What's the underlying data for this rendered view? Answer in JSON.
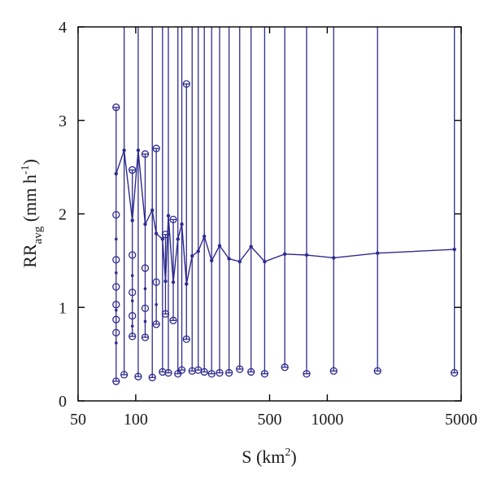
{
  "chart_data": {
    "type": "line",
    "x_scale": "log",
    "xlim": [
      50,
      5000
    ],
    "ylim": [
      0,
      4
    ],
    "xticks": [
      50,
      100,
      500,
      1000,
      5000
    ],
    "xtick_labels": [
      "50",
      "100",
      "500",
      "1000",
      "5000"
    ],
    "yticks": [
      0,
      1,
      2,
      3,
      4
    ],
    "ytick_labels": [
      "0",
      "1",
      "2",
      "3",
      "4"
    ],
    "xlabel": {
      "base": "S (km",
      "sup": "2",
      "tail": ")"
    },
    "ylabel": {
      "base": "RR",
      "sub": "avg",
      "unit": " (mm h",
      "sup": "-1",
      "tail": ")"
    },
    "grid": false,
    "color": "#2e2b8f",
    "series": [
      {
        "x": 79,
        "y_mean": 2.43,
        "y_min": 0.21,
        "y_max": 3.14,
        "y_min_cap": true,
        "y_max_cap": true,
        "markers": [
          0.21,
          0.73,
          0.87,
          1.03,
          1.22,
          1.51,
          1.99,
          3.14
        ],
        "dots": [
          0.62,
          0.97,
          1.37,
          1.73,
          2.43
        ]
      },
      {
        "x": 87,
        "y_mean": 2.68,
        "y_min": 0.28,
        "y_max": 4.0,
        "y_min_cap": true,
        "y_max_cap": false,
        "markers": [
          0.28
        ],
        "dots": []
      },
      {
        "x": 96,
        "y_mean": 1.93,
        "y_min": 0.69,
        "y_max": 2.47,
        "y_min_cap": true,
        "y_max_cap": true,
        "markers": [
          0.69,
          0.91,
          1.16,
          1.56,
          2.47
        ],
        "dots": [
          0.8,
          1.07,
          1.34,
          1.93
        ]
      },
      {
        "x": 103,
        "y_mean": 2.68,
        "y_min": 0.26,
        "y_max": 4.0,
        "y_min_cap": true,
        "y_max_cap": false,
        "markers": [
          0.26
        ],
        "dots": []
      },
      {
        "x": 112,
        "y_mean": 1.89,
        "y_min": 0.68,
        "y_max": 2.64,
        "y_min_cap": true,
        "y_max_cap": true,
        "markers": [
          0.68,
          0.99,
          1.42,
          2.64
        ],
        "dots": [
          0.85,
          1.2,
          1.89
        ]
      },
      {
        "x": 122,
        "y_mean": 2.04,
        "y_min": 0.25,
        "y_max": 4.0,
        "y_min_cap": true,
        "y_max_cap": false,
        "markers": [
          0.25
        ],
        "dots": []
      },
      {
        "x": 128,
        "y_mean": 1.79,
        "y_min": 0.82,
        "y_max": 2.7,
        "y_min_cap": true,
        "y_max_cap": true,
        "markers": [
          0.82,
          1.27,
          2.7
        ],
        "dots": [
          1.03,
          1.79
        ]
      },
      {
        "x": 138,
        "y_mean": 1.73,
        "y_min": 0.31,
        "y_max": 4.0,
        "y_min_cap": true,
        "y_max_cap": false,
        "markers": [
          0.31
        ],
        "dots": []
      },
      {
        "x": 143,
        "y_mean": 1.28,
        "y_min": 0.93,
        "y_max": 1.78,
        "y_min_cap": true,
        "y_max_cap": true,
        "markers": [
          0.93,
          1.78
        ],
        "dots": [
          1.28
        ]
      },
      {
        "x": 148,
        "y_mean": 1.98,
        "y_min": 0.3,
        "y_max": 4.0,
        "y_min_cap": true,
        "y_max_cap": false,
        "markers": [
          0.3
        ],
        "dots": []
      },
      {
        "x": 157,
        "y_mean": 1.27,
        "y_min": 0.86,
        "y_max": 1.94,
        "y_min_cap": true,
        "y_max_cap": true,
        "markers": [
          0.86,
          1.94
        ],
        "dots": [
          1.27
        ]
      },
      {
        "x": 166,
        "y_mean": 1.73,
        "y_min": 0.29,
        "y_max": 4.0,
        "y_min_cap": true,
        "y_max_cap": false,
        "markers": [
          0.29
        ],
        "dots": []
      },
      {
        "x": 174,
        "y_mean": 1.89,
        "y_min": 0.33,
        "y_max": 4.0,
        "y_min_cap": true,
        "y_max_cap": false,
        "markers": [
          0.33
        ],
        "dots": []
      },
      {
        "x": 184,
        "y_mean": 1.25,
        "y_min": 0.66,
        "y_max": 3.39,
        "y_min_cap": true,
        "y_max_cap": true,
        "markers": [
          0.66,
          3.39
        ],
        "dots": [
          1.25
        ]
      },
      {
        "x": 197,
        "y_mean": 1.55,
        "y_min": 0.32,
        "y_max": 4.0,
        "y_min_cap": true,
        "y_max_cap": false,
        "markers": [
          0.32
        ],
        "dots": []
      },
      {
        "x": 212,
        "y_mean": 1.6,
        "y_min": 0.33,
        "y_max": 4.0,
        "y_min_cap": true,
        "y_max_cap": false,
        "markers": [
          0.33
        ],
        "dots": []
      },
      {
        "x": 228,
        "y_mean": 1.76,
        "y_min": 0.31,
        "y_max": 4.0,
        "y_min_cap": true,
        "y_max_cap": false,
        "markers": [
          0.31
        ],
        "dots": []
      },
      {
        "x": 249,
        "y_mean": 1.5,
        "y_min": 0.29,
        "y_max": 4.0,
        "y_min_cap": true,
        "y_max_cap": false,
        "markers": [
          0.29
        ],
        "dots": []
      },
      {
        "x": 274,
        "y_mean": 1.66,
        "y_min": 0.3,
        "y_max": 4.0,
        "y_min_cap": true,
        "y_max_cap": false,
        "markers": [
          0.3
        ],
        "dots": []
      },
      {
        "x": 307,
        "y_mean": 1.52,
        "y_min": 0.3,
        "y_max": 4.0,
        "y_min_cap": true,
        "y_max_cap": false,
        "markers": [
          0.3
        ],
        "dots": []
      },
      {
        "x": 349,
        "y_mean": 1.49,
        "y_min": 0.34,
        "y_max": 4.0,
        "y_min_cap": true,
        "y_max_cap": false,
        "markers": [
          0.34
        ],
        "dots": []
      },
      {
        "x": 400,
        "y_mean": 1.65,
        "y_min": 0.31,
        "y_max": 4.0,
        "y_min_cap": true,
        "y_max_cap": false,
        "markers": [
          0.31
        ],
        "dots": []
      },
      {
        "x": 471,
        "y_mean": 1.49,
        "y_min": 0.29,
        "y_max": 4.0,
        "y_min_cap": true,
        "y_max_cap": false,
        "markers": [
          0.29
        ],
        "dots": []
      },
      {
        "x": 600,
        "y_mean": 1.57,
        "y_min": 0.36,
        "y_max": 4.0,
        "y_min_cap": true,
        "y_max_cap": false,
        "markers": [
          0.36
        ],
        "dots": []
      },
      {
        "x": 780,
        "y_mean": 1.56,
        "y_min": 0.29,
        "y_max": 4.0,
        "y_min_cap": true,
        "y_max_cap": false,
        "markers": [
          0.29
        ],
        "dots": []
      },
      {
        "x": 1080,
        "y_mean": 1.53,
        "y_min": 0.32,
        "y_max": 4.0,
        "y_min_cap": true,
        "y_max_cap": false,
        "markers": [
          0.32
        ],
        "dots": []
      },
      {
        "x": 1830,
        "y_mean": 1.58,
        "y_min": 0.32,
        "y_max": 4.0,
        "y_min_cap": true,
        "y_max_cap": false,
        "markers": [
          0.32
        ],
        "dots": []
      },
      {
        "x": 4610,
        "y_mean": 1.62,
        "y_min": 0.3,
        "y_max": 4.0,
        "y_min_cap": true,
        "y_max_cap": false,
        "markers": [
          0.3
        ],
        "dots": []
      }
    ]
  }
}
